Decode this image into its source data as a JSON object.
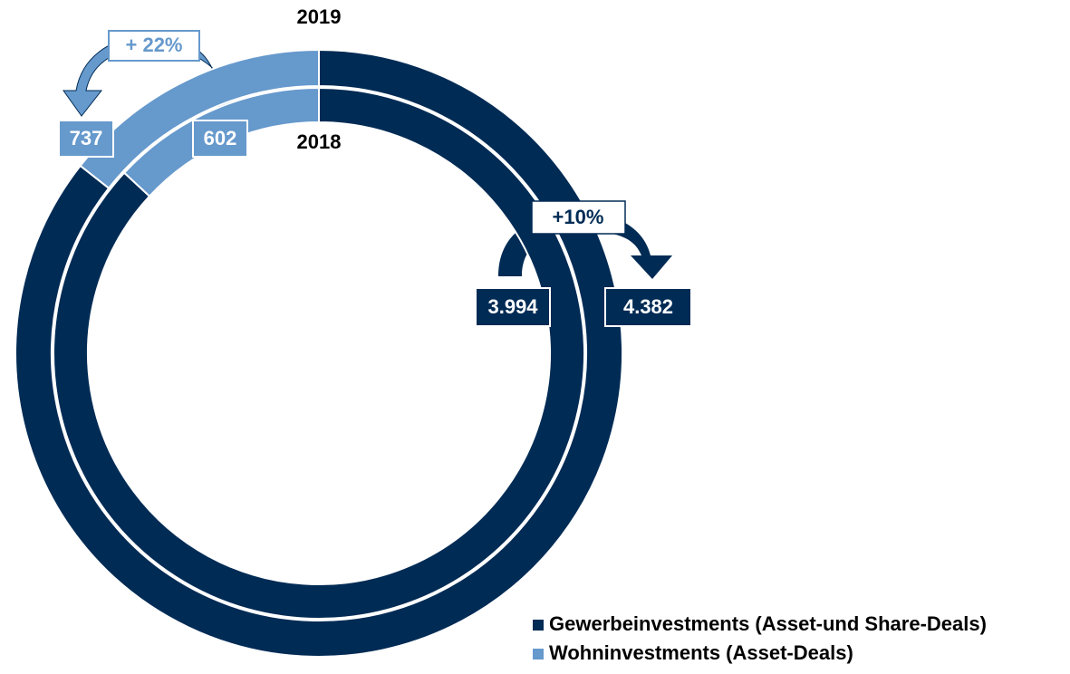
{
  "chart_data": {
    "type": "donut",
    "categories": [
      "2019",
      "2018"
    ],
    "series": [
      {
        "name": "Gewerbeinvestments (Asset-und Share-Deals)",
        "color": "#002b55",
        "values": [
          4382,
          3994
        ],
        "value_labels": [
          "4.382",
          "3.994"
        ]
      },
      {
        "name": "Wohninvestments (Asset-Deals)",
        "color": "#6699cc",
        "values": [
          737,
          602
        ]
      }
    ],
    "annotations": [
      "+ 22%",
      "+10%"
    ],
    "legend": "bottom-right"
  }
}
